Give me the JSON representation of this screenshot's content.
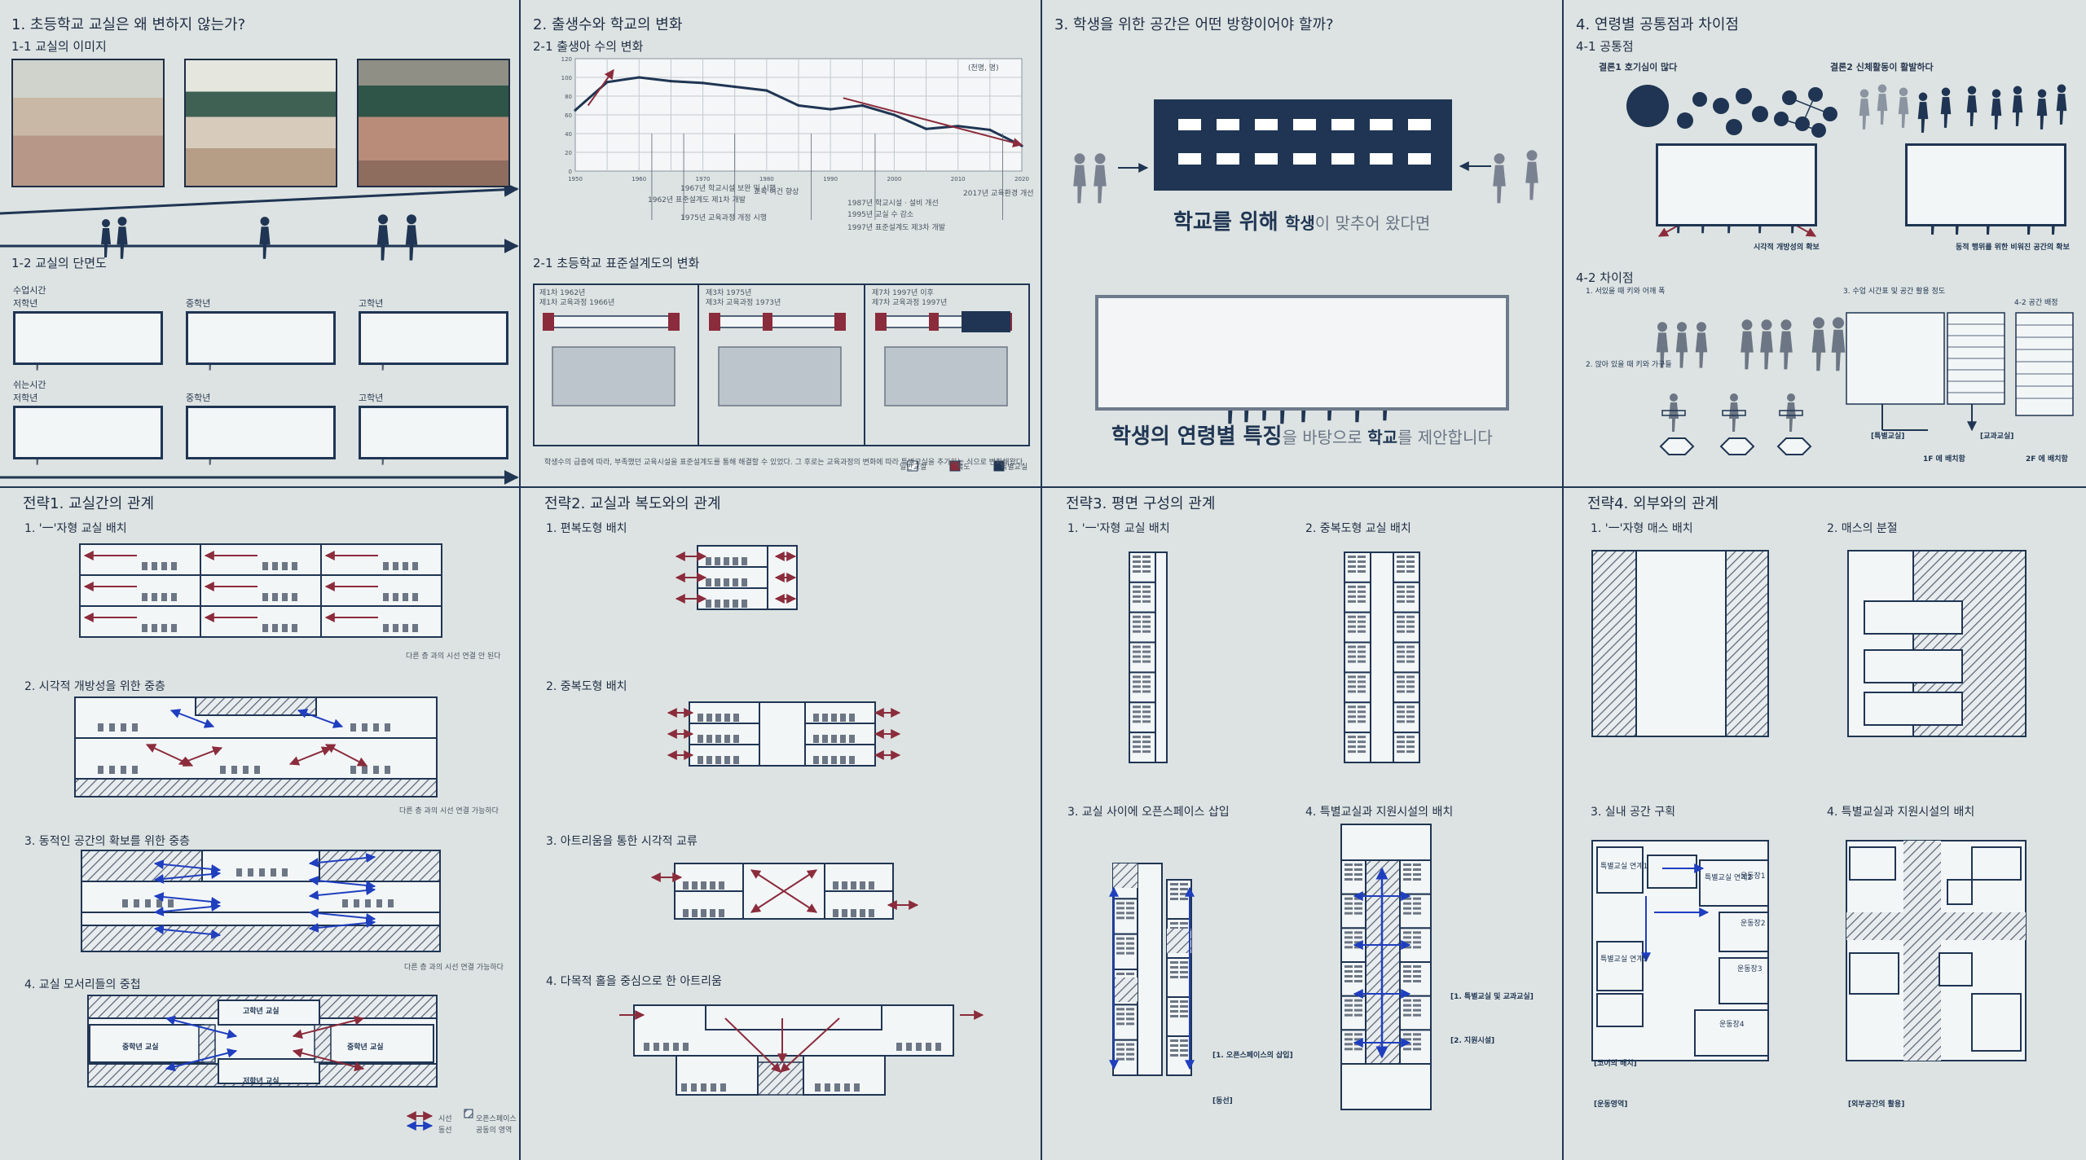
{
  "colors": {
    "navy": "#1f3553",
    "maroon": "#8b2c3c",
    "blue": "#1f3fbf",
    "bg": "#dde3e2"
  },
  "p1": {
    "title": "1. 초등학교 교실은 왜 변하지 않는가?",
    "s1": "1-1 교실의 이미지",
    "s2": "1-2 교실의 단면도",
    "class_time": "수업시간",
    "break_time": "쉬는시간",
    "grades": [
      "저학년",
      "중학년",
      "고학년"
    ]
  },
  "p2": {
    "title": "2. 출생수와 학교의 변화",
    "s1": "2-1 출생아 수의 변화",
    "s2": "2-1 초등학교 표준설계도의 변화",
    "chart_data": {
      "type": "line",
      "x": [
        1950,
        1955,
        1960,
        1965,
        1970,
        1975,
        1980,
        1985,
        1990,
        1995,
        2000,
        2005,
        2010,
        2015,
        2020
      ],
      "series": [
        {
          "values": [
            65,
            95,
            100,
            96,
            94,
            90,
            86,
            70,
            66,
            70,
            60,
            45,
            48,
            44,
            27
          ]
        }
      ],
      "ylim": [
        0,
        120
      ],
      "unit_label": "(천명, 명)"
    },
    "timeline_notes": [
      "1962년 표준설계도 제1차 개발",
      "1967년 학교시설 보완 및 시행",
      "1975년 교육과정 개정 시행",
      "교육 여건 향상",
      "1987년 학교시설 · 설비 개선",
      "1995년 교실 수 감소",
      "1997년 표준설계도 제3차 개발",
      "2017년 교육환경 개선"
    ],
    "plan_labels": [
      [
        "제1차 1962년",
        "제1차 교육과정 1966년"
      ],
      [
        "제3차 1975년",
        "제3차 교육과정 1973년"
      ],
      [
        "제7차 1997년 이후",
        "제7차 교육과정 1997년"
      ]
    ],
    "note": "학생수의 급증에 따라, 부족했던 교육시설을 표준설계도를 통해 해결할 수 있었다. 그 후로는 교육과정의 변화에 따라 특별교실을 추가하는 식으로 변화해왔다.",
    "legend": [
      "일반교실",
      "복도",
      "특별교실"
    ]
  },
  "p3": {
    "title": "3. 학생을 위한 공간은 어떤 방향이어야 할까?",
    "line1_bold": "학교를 위해",
    "line1_mid": "학생",
    "line1_rest": "이 맞추어 왔다면",
    "line2_bold": "학생의 연령별 특징",
    "line2_mid": "을 바탕으로 ",
    "line2_school": "학교",
    "line2_rest": "를 제안합니다"
  },
  "p4": {
    "title": "4. 연령별 공통점과 차이점",
    "s1": "4-1 공통점",
    "s2": "4-2 차이점",
    "c1": "결론1 호기심이 많다",
    "c2": "결론2 신체활동이 활발하다",
    "c1_cap": "시각적 개방성의 확보",
    "c2_cap": "동적 행위를 위한 비워진 공간의 확보",
    "d1": "1. 서있을 때 키와 어깨 폭",
    "d2": "2. 앉아 있을 때 키와 가구들",
    "d3": "3. 수업 시간표 및 공간 활용 정도",
    "d4": "4-2 공간 배정",
    "foot1": "1F 에 배치함",
    "foot2": "2F 에 배치함",
    "spec_room": "[특별교실]",
    "gen_room": "[교과교실]"
  },
  "s1": {
    "title": "전략1. 교실간의 관계",
    "a": "1. '一'자형 교실 배치",
    "b": "2. 시각적 개방성을 위한 중층",
    "c": "3. 동적인 공간의 확보를 위한 중층",
    "d": "4. 교실 모서리들의 중첩",
    "d_labels": [
      "고학년 교실",
      "중학년 교실",
      "저학년 교실",
      "중학년 교실"
    ],
    "note_a": "다른 층 과의 시선 연결 안 된다",
    "note_b": "다른 층 과의 시선 연결 가능하다",
    "note_c": "다른 층 과의 시선 연결 가능하다",
    "legend": [
      "시선",
      "오픈스페이스",
      "동선",
      "공동의 영역"
    ]
  },
  "s2": {
    "title": "전략2. 교실과 복도와의 관계",
    "a": "1. 편복도형 배치",
    "b": "2. 중복도형 배치",
    "c": "3. 아트리움을 통한 시각적 교류",
    "d": "4. 다목적 홀을 중심으로 한 아트리움"
  },
  "s3": {
    "title": "전략3. 평면 구성의 관계",
    "a": "1. '一'자형 교실 배치",
    "b": "2. 중복도형 교실 배치",
    "c": "3. 교실 사이에 오픈스페이스 삽입",
    "d": "4. 특별교실과 지원시설의 배치",
    "note1": "[1. 오픈스페이스의 삽입]",
    "note2": "[동선]",
    "note3": "[1. 특별교실 및 교과교실]",
    "note4": "[2. 지원시설]"
  },
  "s4": {
    "title": "전략4. 외부와의 관계",
    "a": "1. '一'자형 매스 배치",
    "b": "2. 매스의 분절",
    "c": "3. 실내 공간 구획",
    "d": "4. 특별교실과 지원시설의 배치",
    "rooms": [
      "특별교실 연계1",
      "특별교실 연계2",
      "특별교실 연계3",
      "운동장1",
      "운동장2",
      "운동장3",
      "운동장4"
    ],
    "note_c": "[코어의 배치]",
    "note_c2": "[운동영역]",
    "note_d": "[외부공간의 활용]"
  }
}
